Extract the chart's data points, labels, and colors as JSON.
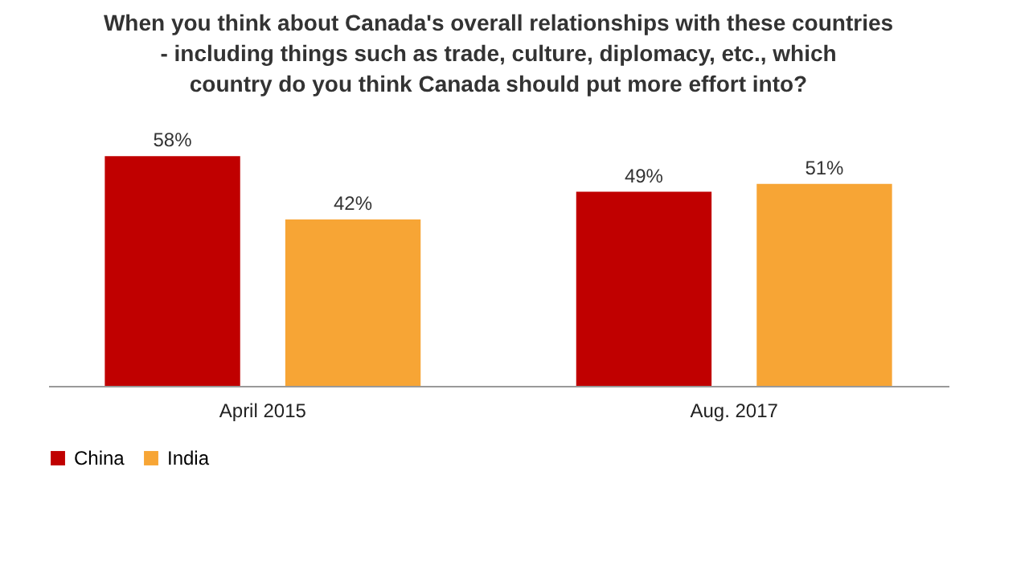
{
  "chart_data": {
    "type": "bar",
    "title": "When you think about Canada's overall relationships with these countries - including things such as trade, culture, diplomacy, etc., which country do you think Canada should put more effort into?",
    "categories": [
      "April 2015",
      "Aug. 2017"
    ],
    "series": [
      {
        "name": "China",
        "color": "#c00000",
        "values": [
          58,
          49
        ],
        "value_labels": [
          "58%",
          "49%"
        ]
      },
      {
        "name": "India",
        "color": "#f7a535",
        "values": [
          42,
          51
        ],
        "value_labels": [
          "42%",
          "51%"
        ]
      }
    ],
    "legend": "bottom",
    "grid": false
  }
}
